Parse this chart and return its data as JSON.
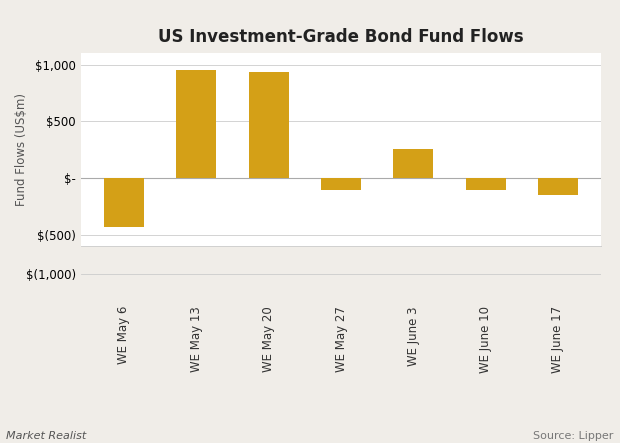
{
  "title": "US Investment-Grade Bond Fund Flows",
  "categories": [
    "WE May 6",
    "WE May 13",
    "WE May 20",
    "WE May 27",
    "WE June 3",
    "WE June 10",
    "WE June 17"
  ],
  "values": [
    -430,
    950,
    930,
    -105,
    260,
    -105,
    -150
  ],
  "bar_color": "#D4A017",
  "ylabel": "Fund Flows (US$m)",
  "background_color": "#f0ede8",
  "plot_bg_color": "#ffffff",
  "footer_left": "Market Realist",
  "footer_right": "Source: Lipper",
  "title_fontsize": 12,
  "ylabel_fontsize": 8.5,
  "tick_fontsize": 8.5,
  "footer_fontsize": 8
}
